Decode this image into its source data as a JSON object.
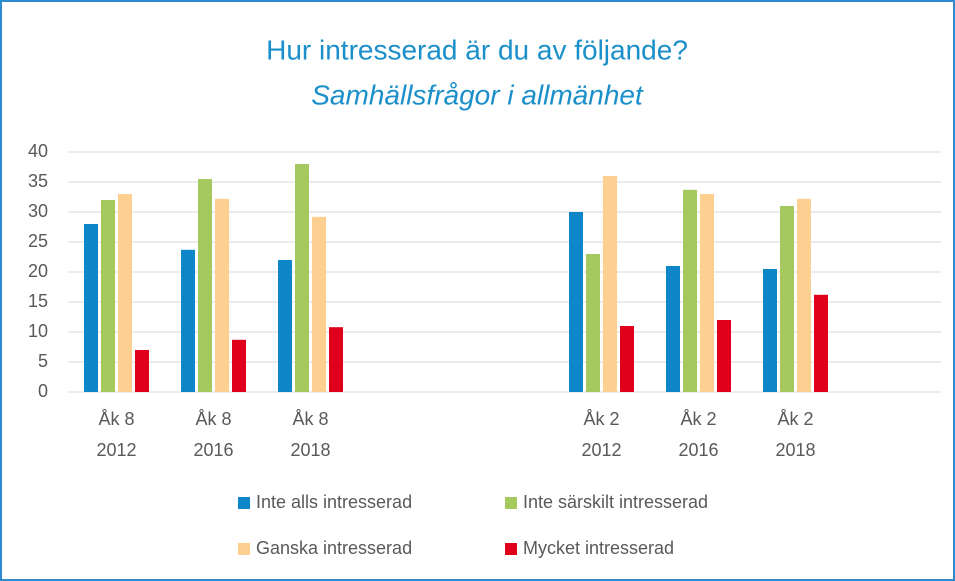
{
  "chart_data": {
    "type": "bar",
    "title": "Hur intresserad är du av följande?",
    "subtitle": "Samhällsfrågor i allmänhet",
    "categories": [
      "Åk 8\n2012",
      "Åk 8\n2016",
      "Åk 8\n2018",
      null,
      null,
      "Åk 2\n2012",
      "Åk 2\n2016",
      "Åk 2\n2018",
      null
    ],
    "series": [
      {
        "name": "Inte alls intresserad",
        "color": "#0e86c8",
        "values": [
          28,
          23.7,
          22,
          null,
          null,
          30,
          21,
          20.5,
          null
        ]
      },
      {
        "name": "Inte särskilt intresserad",
        "color": "#a5c85f",
        "values": [
          32,
          35.5,
          38,
          null,
          null,
          23,
          33.7,
          31,
          null
        ]
      },
      {
        "name": "Ganska intresserad",
        "color": "#fdd091",
        "values": [
          33,
          32.2,
          29.2,
          null,
          null,
          36,
          33,
          32.2,
          null
        ]
      },
      {
        "name": "Mycket intresserad",
        "color": "#e0001b",
        "values": [
          7,
          8.7,
          10.8,
          null,
          null,
          11,
          12,
          16.2,
          null
        ]
      }
    ],
    "ylim": [
      0,
      40
    ],
    "yticks": [
      0,
      5,
      10,
      15,
      20,
      25,
      30,
      35,
      40
    ],
    "grid": true,
    "legend": "bottom"
  }
}
